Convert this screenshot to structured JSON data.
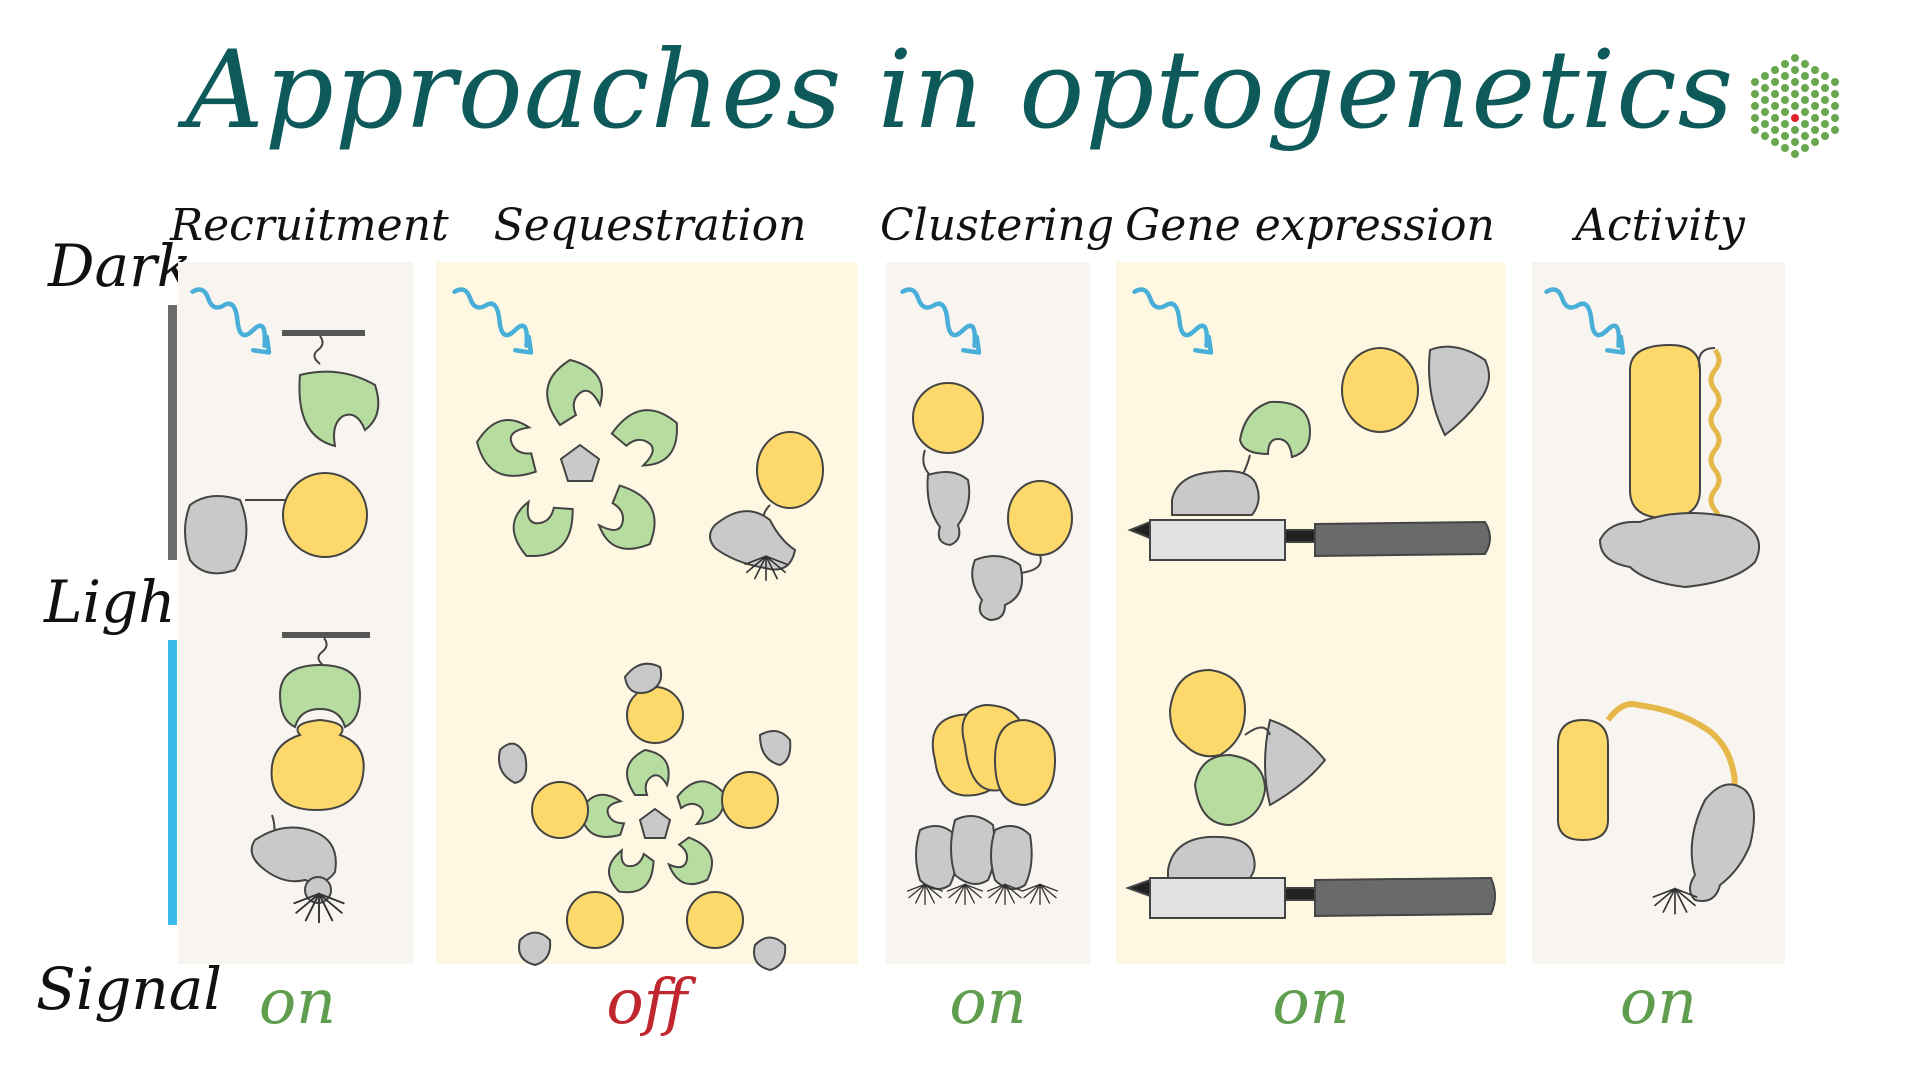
{
  "title": "Approaches in optogenetics",
  "row_labels": {
    "dark": "Dark",
    "light": "Light",
    "signal": "Signal"
  },
  "columns": [
    {
      "name": "Recruitment",
      "signal": "on"
    },
    {
      "name": "Sequestration",
      "signal": "off"
    },
    {
      "name": "Clustering",
      "signal": "on"
    },
    {
      "name": "Gene expression",
      "signal": "on"
    },
    {
      "name": "Activity",
      "signal": "on"
    }
  ],
  "colors": {
    "title": "#0e5a5a",
    "signal_on": "#5f9e4e",
    "signal_off": "#c0262d",
    "dark_bar": "#6b6b6b",
    "light_bar": "#3bbbea",
    "light_arrow": "#4aafd8",
    "yellow_protein": "#fcd96a",
    "green_protein": "#b7dca0",
    "gray_protein": "#c9c9c9",
    "logo_green": "#6aa84f",
    "logo_dot": "#e0202a"
  }
}
